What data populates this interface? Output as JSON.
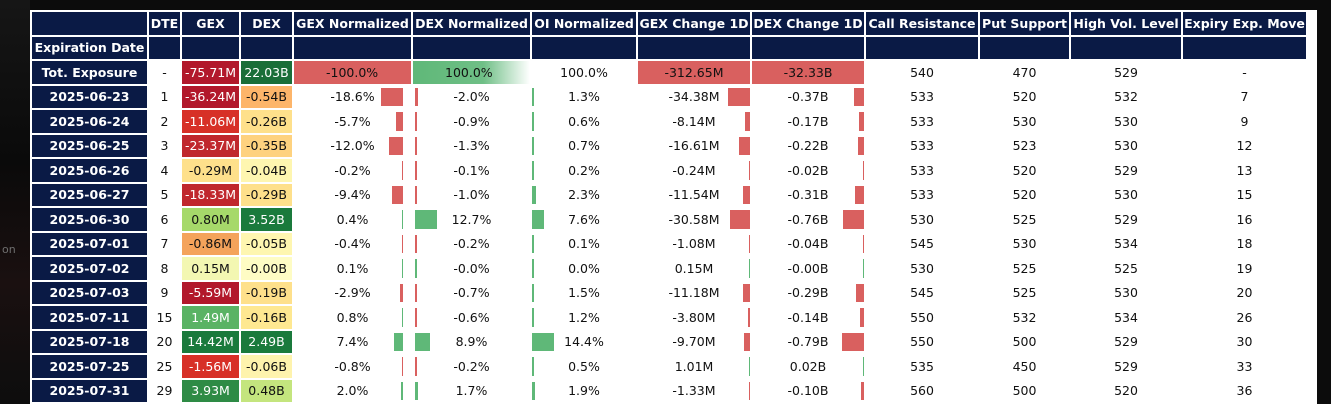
{
  "side_text": "on",
  "headers": [
    "",
    "DTE",
    "GEX",
    "DEX",
    "GEX Normalized",
    "DEX Normalized",
    "OI Normalized",
    "GEX Change 1D",
    "DEX Change 1D",
    "Call Resistance",
    "Put Support",
    "High Vol. Level",
    "Expiry Exp. Move"
  ],
  "subheader_label": "Expiration Date",
  "colors": {
    "header_bg": "#0a1a45",
    "neg_bar": "#d9605f",
    "pos_bar": "#5fb878",
    "dark_red": "#b2182b",
    "red": "#d73027",
    "orange": "#f4a35b",
    "light_orange": "#fdcf84",
    "pale_yellow": "#fef0a6",
    "light_green": "#a6d96a",
    "green": "#4aa860",
    "dark_green": "#1a7a3c"
  },
  "total": {
    "label": "Tot. Exposure",
    "dte": "-",
    "gex": "-75.71M",
    "gex_color": "#b2182b",
    "gex_dark": true,
    "dex": "22.03B",
    "dex_color": "#1a6e38",
    "dex_dark": true,
    "gex_norm": "-100.0%",
    "dex_norm": "100.0%",
    "oi_norm": "100.0%",
    "gex_chg": "-312.65M",
    "dex_chg": "-32.33B",
    "call_res": "540",
    "put_sup": "470",
    "hvl": "529",
    "exp_move": "-"
  },
  "rows": [
    {
      "date": "2025-06-23",
      "dte": "1",
      "gex": "-36.24M",
      "gex_color": "#b2182b",
      "gex_dark": true,
      "dex": "-0.54B",
      "dex_color": "#fdb56a",
      "dex_dark": false,
      "gex_norm": "-18.6%",
      "gex_norm_v": -18.6,
      "dex_norm": "-2.0%",
      "dex_norm_v": -2.0,
      "oi_norm": "1.3%",
      "oi_norm_v": 1.3,
      "gex_chg": "-34.38M",
      "gex_chg_v": -34.38,
      "dex_chg": "-0.37B",
      "dex_chg_v": -0.37,
      "call_res": "533",
      "put_sup": "520",
      "hvl": "532",
      "exp_move": "7"
    },
    {
      "date": "2025-06-24",
      "dte": "2",
      "gex": "-11.06M",
      "gex_color": "#d73027",
      "gex_dark": true,
      "dex": "-0.26B",
      "dex_color": "#fee08b",
      "dex_dark": false,
      "gex_norm": "-5.7%",
      "gex_norm_v": -5.7,
      "dex_norm": "-0.9%",
      "dex_norm_v": -0.9,
      "oi_norm": "0.6%",
      "oi_norm_v": 0.6,
      "gex_chg": "-8.14M",
      "gex_chg_v": -8.14,
      "dex_chg": "-0.17B",
      "dex_chg_v": -0.17,
      "call_res": "533",
      "put_sup": "530",
      "hvl": "530",
      "exp_move": "9"
    },
    {
      "date": "2025-06-25",
      "dte": "3",
      "gex": "-23.37M",
      "gex_color": "#c0272d",
      "gex_dark": true,
      "dex": "-0.35B",
      "dex_color": "#fed27f",
      "dex_dark": false,
      "gex_norm": "-12.0%",
      "gex_norm_v": -12.0,
      "dex_norm": "-1.3%",
      "dex_norm_v": -1.3,
      "oi_norm": "0.7%",
      "oi_norm_v": 0.7,
      "gex_chg": "-16.61M",
      "gex_chg_v": -16.61,
      "dex_chg": "-0.22B",
      "dex_chg_v": -0.22,
      "call_res": "533",
      "put_sup": "523",
      "hvl": "530",
      "exp_move": "12"
    },
    {
      "date": "2025-06-26",
      "dte": "4",
      "gex": "-0.29M",
      "gex_color": "#fee08b",
      "gex_dark": false,
      "dex": "-0.04B",
      "dex_color": "#fef6b0",
      "dex_dark": false,
      "gex_norm": "-0.2%",
      "gex_norm_v": -0.2,
      "dex_norm": "-0.1%",
      "dex_norm_v": -0.1,
      "oi_norm": "0.2%",
      "oi_norm_v": 0.2,
      "gex_chg": "-0.24M",
      "gex_chg_v": -0.24,
      "dex_chg": "-0.02B",
      "dex_chg_v": -0.02,
      "call_res": "533",
      "put_sup": "520",
      "hvl": "529",
      "exp_move": "13"
    },
    {
      "date": "2025-06-27",
      "dte": "5",
      "gex": "-18.33M",
      "gex_color": "#c0272d",
      "gex_dark": true,
      "dex": "-0.29B",
      "dex_color": "#fee08b",
      "dex_dark": false,
      "gex_norm": "-9.4%",
      "gex_norm_v": -9.4,
      "dex_norm": "-1.0%",
      "dex_norm_v": -1.0,
      "oi_norm": "2.3%",
      "oi_norm_v": 2.3,
      "gex_chg": "-11.54M",
      "gex_chg_v": -11.54,
      "dex_chg": "-0.31B",
      "dex_chg_v": -0.31,
      "call_res": "533",
      "put_sup": "520",
      "hvl": "530",
      "exp_move": "15"
    },
    {
      "date": "2025-06-30",
      "dte": "6",
      "gex": "0.80M",
      "gex_color": "#a6d96a",
      "gex_dark": false,
      "dex": "3.52B",
      "dex_color": "#1a7a3c",
      "dex_dark": true,
      "gex_norm": "0.4%",
      "gex_norm_v": 0.4,
      "dex_norm": "12.7%",
      "dex_norm_v": 12.7,
      "oi_norm": "7.6%",
      "oi_norm_v": 7.6,
      "gex_chg": "-30.58M",
      "gex_chg_v": -30.58,
      "dex_chg": "-0.76B",
      "dex_chg_v": -0.76,
      "call_res": "530",
      "put_sup": "525",
      "hvl": "529",
      "exp_move": "16"
    },
    {
      "date": "2025-07-01",
      "dte": "7",
      "gex": "-0.86M",
      "gex_color": "#f4a35b",
      "gex_dark": false,
      "dex": "-0.05B",
      "dex_color": "#fef6b0",
      "dex_dark": false,
      "gex_norm": "-0.4%",
      "gex_norm_v": -0.4,
      "dex_norm": "-0.2%",
      "dex_norm_v": -0.2,
      "oi_norm": "0.1%",
      "oi_norm_v": 0.1,
      "gex_chg": "-1.08M",
      "gex_chg_v": -1.08,
      "dex_chg": "-0.04B",
      "dex_chg_v": -0.04,
      "call_res": "545",
      "put_sup": "530",
      "hvl": "534",
      "exp_move": "18"
    },
    {
      "date": "2025-07-02",
      "dte": "8",
      "gex": "0.15M",
      "gex_color": "#f3f7b2",
      "gex_dark": false,
      "dex": "-0.00B",
      "dex_color": "#fefcc4",
      "dex_dark": false,
      "gex_norm": "0.1%",
      "gex_norm_v": 0.1,
      "dex_norm": "-0.0%",
      "dex_norm_v": 0.0,
      "oi_norm": "0.0%",
      "oi_norm_v": 0.0,
      "gex_chg": "0.15M",
      "gex_chg_v": 0.15,
      "dex_chg": "-0.00B",
      "dex_chg_v": 0.0,
      "call_res": "530",
      "put_sup": "525",
      "hvl": "525",
      "exp_move": "19"
    },
    {
      "date": "2025-07-03",
      "dte": "9",
      "gex": "-5.59M",
      "gex_color": "#b2182b",
      "gex_dark": true,
      "dex": "-0.19B",
      "dex_color": "#fee08b",
      "dex_dark": false,
      "gex_norm": "-2.9%",
      "gex_norm_v": -2.9,
      "dex_norm": "-0.7%",
      "dex_norm_v": -0.7,
      "oi_norm": "1.5%",
      "oi_norm_v": 1.5,
      "gex_chg": "-11.18M",
      "gex_chg_v": -11.18,
      "dex_chg": "-0.29B",
      "dex_chg_v": -0.29,
      "call_res": "545",
      "put_sup": "525",
      "hvl": "530",
      "exp_move": "20"
    },
    {
      "date": "2025-07-11",
      "dte": "15",
      "gex": "1.49M",
      "gex_color": "#5ab364",
      "gex_dark": true,
      "dex": "-0.16B",
      "dex_color": "#fee891",
      "dex_dark": false,
      "gex_norm": "0.8%",
      "gex_norm_v": 0.8,
      "dex_norm": "-0.6%",
      "dex_norm_v": -0.6,
      "oi_norm": "1.2%",
      "oi_norm_v": 1.2,
      "gex_chg": "-3.80M",
      "gex_chg_v": -3.8,
      "dex_chg": "-0.14B",
      "dex_chg_v": -0.14,
      "call_res": "550",
      "put_sup": "532",
      "hvl": "534",
      "exp_move": "26"
    },
    {
      "date": "2025-07-18",
      "dte": "20",
      "gex": "14.42M",
      "gex_color": "#1a7a3c",
      "gex_dark": true,
      "dex": "2.49B",
      "dex_color": "#1a7a3c",
      "dex_dark": true,
      "gex_norm": "7.4%",
      "gex_norm_v": 7.4,
      "dex_norm": "8.9%",
      "dex_norm_v": 8.9,
      "oi_norm": "14.4%",
      "oi_norm_v": 14.4,
      "gex_chg": "-9.70M",
      "gex_chg_v": -9.7,
      "dex_chg": "-0.79B",
      "dex_chg_v": -0.79,
      "call_res": "550",
      "put_sup": "500",
      "hvl": "529",
      "exp_move": "30"
    },
    {
      "date": "2025-07-25",
      "dte": "25",
      "gex": "-1.56M",
      "gex_color": "#d73027",
      "gex_dark": true,
      "dex": "-0.06B",
      "dex_color": "#fef3ad",
      "dex_dark": false,
      "gex_norm": "-0.8%",
      "gex_norm_v": -0.8,
      "dex_norm": "-0.2%",
      "dex_norm_v": -0.2,
      "oi_norm": "0.5%",
      "oi_norm_v": 0.5,
      "gex_chg": "1.01M",
      "gex_chg_v": 1.01,
      "dex_chg": "0.02B",
      "dex_chg_v": 0.02,
      "call_res": "535",
      "put_sup": "450",
      "hvl": "529",
      "exp_move": "33"
    },
    {
      "date": "2025-07-31",
      "dte": "29",
      "gex": "3.93M",
      "gex_color": "#2e8b45",
      "gex_dark": true,
      "dex": "0.48B",
      "dex_color": "#c4e57e",
      "dex_dark": false,
      "gex_norm": "2.0%",
      "gex_norm_v": 2.0,
      "dex_norm": "1.7%",
      "dex_norm_v": 1.7,
      "oi_norm": "1.9%",
      "oi_norm_v": 1.9,
      "gex_chg": "-1.33M",
      "gex_chg_v": -1.33,
      "dex_chg": "-0.10B",
      "dex_chg_v": -0.1,
      "call_res": "560",
      "put_sup": "500",
      "hvl": "520",
      "exp_move": "36"
    }
  ]
}
